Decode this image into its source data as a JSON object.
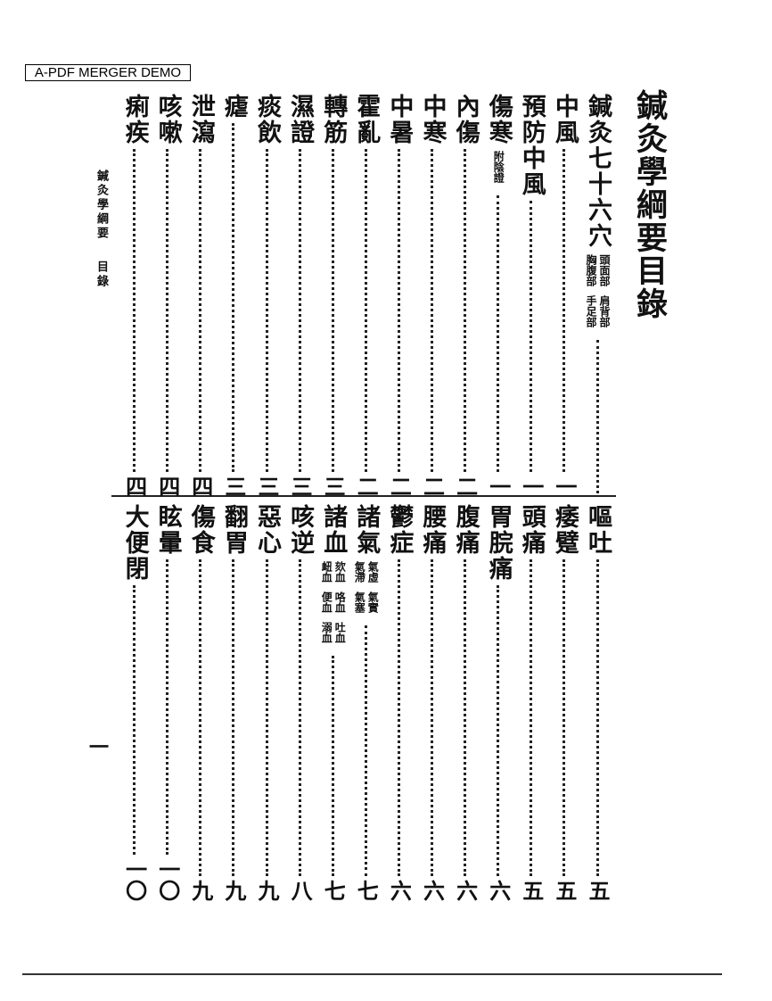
{
  "watermark": "A-PDF MERGER DEMO",
  "title": "鍼灸學綱要目錄",
  "margin_header": {
    "book": "鍼灸學綱要",
    "section": "目錄"
  },
  "page_number": "一",
  "top_entries": [
    {
      "name": "鍼灸七十六穴",
      "annotation": [
        [
          "頭面部",
          "肩背部"
        ],
        [
          "胸腹部",
          "手足部"
        ]
      ],
      "page": ""
    },
    {
      "name": "中風",
      "page": "一"
    },
    {
      "name": "預防中風",
      "page": "一"
    },
    {
      "name": "傷寒",
      "annotation": [
        [
          "附陰證"
        ]
      ],
      "page": "一"
    },
    {
      "name": "內傷",
      "page": "二"
    },
    {
      "name": "中寒",
      "page": "二"
    },
    {
      "name": "中暑",
      "page": "二"
    },
    {
      "name": "霍亂",
      "page": "二"
    },
    {
      "name": "轉筋",
      "page": "三"
    },
    {
      "name": "濕證",
      "page": "三"
    },
    {
      "name": "痰飲",
      "page": "三"
    },
    {
      "name": "瘧",
      "page": "三"
    },
    {
      "name": "泄瀉",
      "page": "四"
    },
    {
      "name": "咳嗽",
      "page": "四"
    },
    {
      "name": "痢疾",
      "page": "四"
    }
  ],
  "bottom_entries": [
    {
      "name": "嘔吐",
      "page": "五"
    },
    {
      "name": "痿躄",
      "page": "五"
    },
    {
      "name": "頭痛",
      "page": "五"
    },
    {
      "name": "胃脘痛",
      "page": "六"
    },
    {
      "name": "腹痛",
      "page": "六"
    },
    {
      "name": "腰痛",
      "page": "六"
    },
    {
      "name": "鬱症",
      "page": "六"
    },
    {
      "name": "諸氣",
      "annotation": [
        [
          "氣虛",
          "氣實"
        ],
        [
          "氣滯",
          "氣塞"
        ]
      ],
      "page": "七"
    },
    {
      "name": "諸血",
      "annotation": [
        [
          "欬血",
          "咯血",
          "吐血"
        ],
        [
          "衄血",
          "便血",
          "溺血"
        ]
      ],
      "page": "七"
    },
    {
      "name": "咳逆",
      "page": "八"
    },
    {
      "name": "惡心",
      "page": "九"
    },
    {
      "name": "翻胃",
      "page": "九"
    },
    {
      "name": "傷食",
      "page": "九"
    },
    {
      "name": "眩暈",
      "page": "一〇"
    },
    {
      "name": "大便閉",
      "page": "一〇"
    }
  ]
}
